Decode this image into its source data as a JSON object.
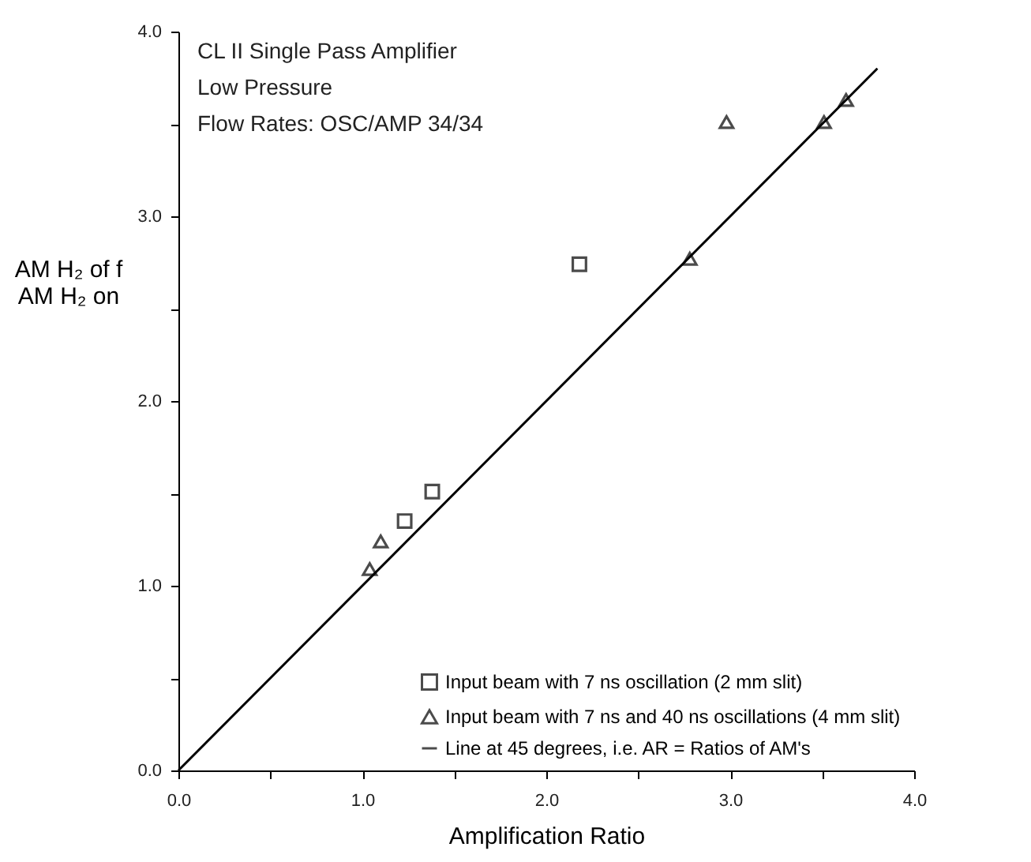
{
  "chart_data": {
    "type": "scatter",
    "xlabel": "Amplification Ratio",
    "ylabel": "AM H₂ of f\nAM H₂ on",
    "annotations": [
      "CL II Single Pass Amplifier",
      "Low Pressure",
      "Flow Rates: OSC/AMP 34/34"
    ],
    "series": [
      {
        "name": "Input beam with 7 ns oscillation (2 mm slit)",
        "marker": "square",
        "color": "#000000",
        "x": [
          1.23,
          1.38,
          2.18
        ],
        "values": [
          1.35,
          1.51,
          2.74
        ]
      },
      {
        "name": "Input beam with 7 ns and 40 ns oscillations (4 mm slit)",
        "marker": "triangle",
        "color": "#000000",
        "x": [
          1.04,
          1.1,
          2.78,
          2.98,
          3.51,
          3.63
        ],
        "values": [
          1.09,
          1.24,
          2.77,
          3.51,
          3.51,
          3.63
        ]
      },
      {
        "name": "Line at 45 degrees, i.e. AR = Ratios of AM's",
        "type": "line",
        "marker": "none",
        "color": "#000000",
        "x": [
          0,
          3.8
        ],
        "values": [
          0,
          3.8
        ]
      }
    ],
    "xlim": [
      0,
      4
    ],
    "ylim": [
      0,
      4
    ],
    "xticks": [
      {
        "value": 0,
        "label": "0.0"
      },
      {
        "value": 0.5,
        "label": null
      },
      {
        "value": 1,
        "label": "1.0"
      },
      {
        "value": 1.5,
        "label": null
      },
      {
        "value": 2,
        "label": "2.0"
      },
      {
        "value": 2.5,
        "label": null
      },
      {
        "value": 3,
        "label": "3.0"
      },
      {
        "value": 3.5,
        "label": null
      },
      {
        "value": 4,
        "label": "4.0"
      }
    ],
    "yticks": [
      {
        "value": 0,
        "label": "0.0"
      },
      {
        "value": 0.5,
        "label": null
      },
      {
        "value": 1,
        "label": "1.0"
      },
      {
        "value": 1.5,
        "label": null
      },
      {
        "value": 2,
        "label": "2.0"
      },
      {
        "value": 2.5,
        "label": null
      },
      {
        "value": 3,
        "label": "3.0"
      },
      {
        "value": 3.5,
        "label": null
      },
      {
        "value": 4,
        "label": "4.0"
      }
    ],
    "grid": false,
    "legend": "bottom right"
  }
}
